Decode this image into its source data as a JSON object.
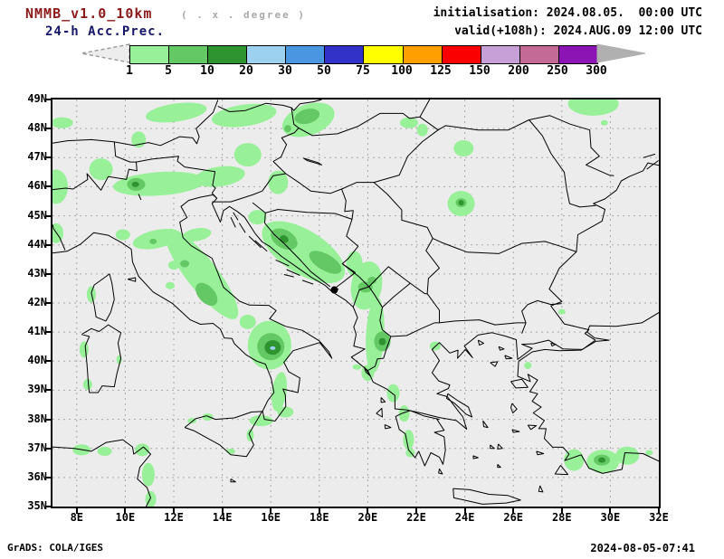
{
  "header": {
    "model": "NMMB_v1.0_10km",
    "grid_note": "( . x . degree )",
    "product": "24-h Acc.Prec.",
    "init": "initialisation: 2024.08.05.  00:00 UTC",
    "valid": "valid(+108h): 2024.AUG.09 12:00 UTC"
  },
  "colorbar": {
    "tick_labels": [
      "1",
      "5",
      "10",
      "20",
      "30",
      "50",
      "75",
      "100",
      "125",
      "150",
      "200",
      "250",
      "300"
    ],
    "segment_colors": [
      "#98F098",
      "#64C864",
      "#2E9430",
      "#9CD2F0",
      "#4B96E1",
      "#3232C8",
      "#FFFF00",
      "#FFA000",
      "#FB0000",
      "#C8A0D8",
      "#C46A96",
      "#8C14B4"
    ],
    "under_arrow_fill": "#EDEDED",
    "under_arrow_outline": "#999999",
    "over_arrow_fill": "#B0B0B0"
  },
  "map": {
    "background": "#ECECEC",
    "grid_color": "#AAAAAA",
    "coast_color": "#000000",
    "lat_labels": [
      "49N",
      "48N",
      "47N",
      "46N",
      "45N",
      "44N",
      "43N",
      "42N",
      "41N",
      "40N",
      "39N",
      "38N",
      "37N",
      "36N",
      "35N"
    ],
    "lon_labels": [
      "8E",
      "10E",
      "12E",
      "14E",
      "16E",
      "18E",
      "20E",
      "22E",
      "24E",
      "26E",
      "28E",
      "30E",
      "32E"
    ],
    "lon_range": [
      7,
      32
    ],
    "lat_range": [
      35,
      49
    ]
  },
  "chart_data": {
    "type": "filled-contour-map",
    "variable": "24-h accumulated precipitation (mm)",
    "levels_mm": [
      1,
      5,
      10,
      20,
      30,
      50,
      75,
      100,
      125,
      150,
      200,
      250,
      300
    ],
    "patch_level_meaning": {
      "1": "1-5 mm",
      "2": "5-10 mm",
      "3": "10-20 mm",
      "4": "20-30 mm"
    },
    "patch_format": "[lon_deg_E, lat_deg_N, rx_px, ry_px, rotation_deg, level]",
    "patches": [
      [
        12.1,
        48.55,
        34,
        10,
        -8,
        1
      ],
      [
        14.9,
        48.45,
        36,
        12,
        -8,
        1
      ],
      [
        17.55,
        48.3,
        30,
        17,
        -20,
        1
      ],
      [
        7.4,
        48.2,
        12,
        6,
        0,
        1
      ],
      [
        10.55,
        47.62,
        8,
        9,
        0,
        1
      ],
      [
        15.05,
        47.1,
        15,
        13,
        0,
        1
      ],
      [
        9.0,
        46.6,
        13,
        12,
        0,
        1
      ],
      [
        7.15,
        46.0,
        13,
        19,
        0,
        1
      ],
      [
        11.4,
        46.1,
        51,
        13,
        -4,
        1
      ],
      [
        13.9,
        46.35,
        28,
        11,
        -8,
        1
      ],
      [
        16.3,
        46.15,
        11,
        13,
        0,
        1
      ],
      [
        21.7,
        48.2,
        10,
        6,
        0,
        1
      ],
      [
        22.25,
        47.95,
        6,
        7,
        0,
        1
      ],
      [
        23.95,
        47.32,
        11,
        9,
        0,
        1
      ],
      [
        29.3,
        48.85,
        28,
        13,
        0,
        1
      ],
      [
        29.75,
        48.2,
        4,
        3,
        0,
        1
      ],
      [
        23.85,
        45.42,
        15,
        14,
        0,
        1
      ],
      [
        11.3,
        44.2,
        27,
        10,
        -12,
        1
      ],
      [
        12.95,
        44.35,
        16,
        7,
        -10,
        1
      ],
      [
        9.9,
        44.35,
        8,
        6,
        0,
        1
      ],
      [
        7.15,
        44.4,
        8,
        11,
        0,
        1
      ],
      [
        13.15,
        43.0,
        62,
        17,
        52,
        1
      ],
      [
        12.0,
        43.3,
        6,
        5,
        0,
        1
      ],
      [
        11.85,
        42.6,
        5,
        4,
        0,
        1
      ],
      [
        15.95,
        40.55,
        24,
        27,
        0,
        1
      ],
      [
        15.05,
        41.35,
        9,
        8,
        0,
        1
      ],
      [
        16.35,
        38.95,
        8,
        22,
        8,
        1
      ],
      [
        16.6,
        38.25,
        9,
        6,
        0,
        1
      ],
      [
        15.6,
        37.95,
        13,
        6,
        0,
        1
      ],
      [
        13.4,
        38.08,
        6,
        4,
        0,
        1
      ],
      [
        12.75,
        37.95,
        5,
        3,
        0,
        1
      ],
      [
        15.15,
        37.45,
        4,
        7,
        0,
        1
      ],
      [
        17.35,
        43.75,
        52,
        24,
        32,
        1
      ],
      [
        15.45,
        44.95,
        10,
        8,
        0,
        1
      ],
      [
        19.95,
        42.6,
        17,
        27,
        10,
        1
      ],
      [
        19.45,
        43.35,
        9,
        14,
        0,
        1
      ],
      [
        20.3,
        40.9,
        10,
        42,
        3,
        1
      ],
      [
        20.0,
        39.6,
        7,
        9,
        0,
        1
      ],
      [
        21.05,
        38.9,
        7,
        10,
        0,
        1
      ],
      [
        21.5,
        38.2,
        6,
        9,
        0,
        1
      ],
      [
        21.68,
        37.3,
        6,
        11,
        0,
        1
      ],
      [
        21.75,
        36.85,
        5,
        5,
        0,
        1
      ],
      [
        22.78,
        40.52,
        6,
        5,
        0,
        1
      ],
      [
        26.6,
        39.85,
        4,
        4,
        0,
        1
      ],
      [
        28.0,
        41.7,
        4,
        3,
        0,
        1
      ],
      [
        28.5,
        36.6,
        11,
        12,
        0,
        1
      ],
      [
        29.7,
        36.55,
        18,
        13,
        0,
        1
      ],
      [
        30.7,
        36.75,
        13,
        10,
        0,
        1
      ],
      [
        31.6,
        36.85,
        4,
        3,
        0,
        1
      ],
      [
        8.2,
        36.95,
        10,
        6,
        0,
        1
      ],
      [
        9.15,
        36.9,
        8,
        5,
        0,
        1
      ],
      [
        10.7,
        36.95,
        8,
        7,
        0,
        1
      ],
      [
        10.95,
        36.1,
        7,
        13,
        0,
        1
      ],
      [
        11.05,
        35.25,
        6,
        9,
        0,
        1
      ],
      [
        8.6,
        42.3,
        5,
        9,
        0,
        1
      ],
      [
        8.3,
        40.4,
        5,
        9,
        0,
        1
      ],
      [
        8.45,
        39.2,
        5,
        6,
        0,
        1
      ],
      [
        9.75,
        40.05,
        3,
        5,
        0,
        1
      ],
      [
        19.55,
        39.8,
        5,
        3,
        0,
        1
      ],
      [
        14.35,
        36.9,
        5,
        3,
        0,
        1
      ],
      [
        17.5,
        48.42,
        14,
        8,
        -15,
        2
      ],
      [
        16.7,
        48.0,
        4,
        4,
        0,
        2
      ],
      [
        10.45,
        46.08,
        10,
        7,
        0,
        2
      ],
      [
        23.85,
        45.45,
        6,
        5,
        0,
        2
      ],
      [
        11.15,
        44.12,
        4,
        3,
        0,
        2
      ],
      [
        12.45,
        43.35,
        5,
        4,
        0,
        2
      ],
      [
        13.35,
        42.3,
        15,
        9,
        48,
        2
      ],
      [
        16.0,
        40.5,
        15,
        15,
        0,
        2
      ],
      [
        16.55,
        44.2,
        16,
        10,
        30,
        2
      ],
      [
        18.25,
        43.4,
        20,
        9,
        30,
        2
      ],
      [
        19.9,
        42.55,
        8,
        6,
        0,
        2
      ],
      [
        20.18,
        42.78,
        5,
        4,
        0,
        2
      ],
      [
        20.6,
        40.68,
        9,
        11,
        0,
        2
      ],
      [
        29.65,
        36.6,
        9,
        6,
        0,
        2
      ],
      [
        10.42,
        46.08,
        4,
        3,
        0,
        3
      ],
      [
        16.08,
        40.47,
        9,
        8,
        0,
        3
      ],
      [
        20.6,
        40.67,
        4,
        4,
        0,
        3
      ],
      [
        29.65,
        36.6,
        4,
        3,
        0,
        3
      ],
      [
        16.55,
        44.2,
        5,
        4,
        30,
        3
      ],
      [
        23.85,
        45.45,
        3,
        3,
        0,
        3
      ],
      [
        16.08,
        40.45,
        3,
        2,
        0,
        4
      ]
    ]
  },
  "footer": {
    "left": "GrADS: COLA/IGES",
    "right": "2024-08-05-07:41"
  }
}
